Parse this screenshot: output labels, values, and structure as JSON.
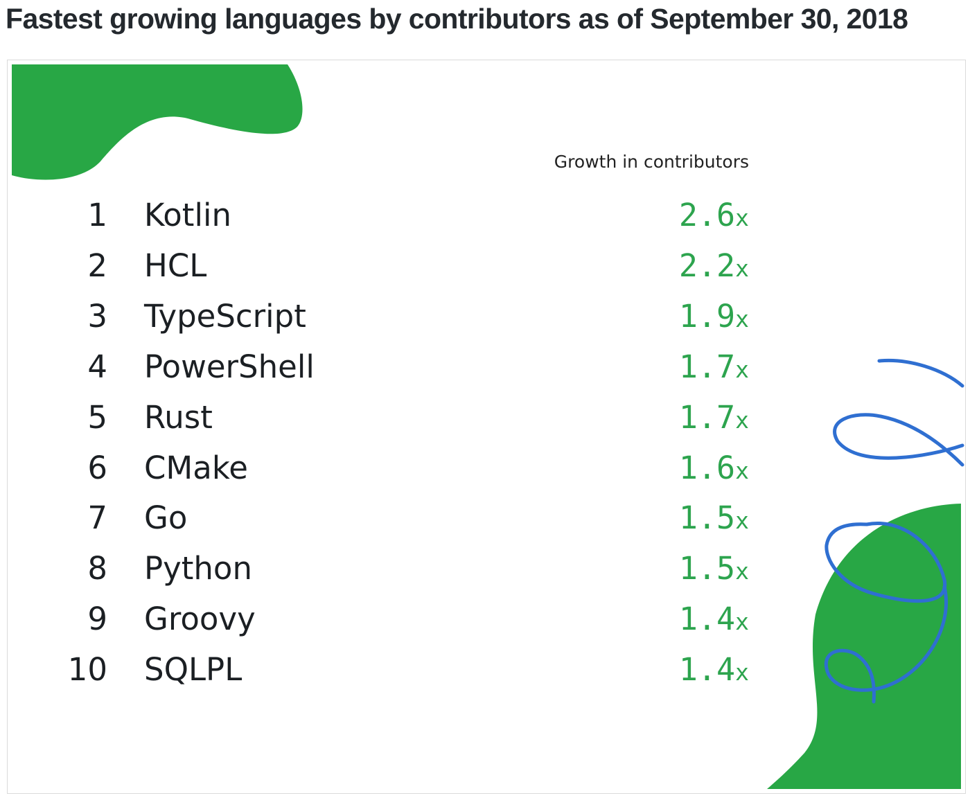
{
  "title": "Fastest growing languages by contributors as of September 30, 2018",
  "colors": {
    "green": "#2da44e",
    "blue": "#2f6fd1",
    "text": "#1b1f23"
  },
  "chart_data": {
    "type": "table",
    "value_header": "Growth in contributors",
    "unit_suffix": "x",
    "rows": [
      {
        "rank": "1",
        "language": "Kotlin",
        "growth": "2.6"
      },
      {
        "rank": "2",
        "language": "HCL",
        "growth": "2.2"
      },
      {
        "rank": "3",
        "language": "TypeScript",
        "growth": "1.9"
      },
      {
        "rank": "4",
        "language": "PowerShell",
        "growth": "1.7"
      },
      {
        "rank": "5",
        "language": "Rust",
        "growth": "1.7"
      },
      {
        "rank": "6",
        "language": "CMake",
        "growth": "1.6"
      },
      {
        "rank": "7",
        "language": "Go",
        "growth": "1.5"
      },
      {
        "rank": "8",
        "language": "Python",
        "growth": "1.5"
      },
      {
        "rank": "9",
        "language": "Groovy",
        "growth": "1.4"
      },
      {
        "rank": "10",
        "language": "SQLPL",
        "growth": "1.4"
      }
    ]
  }
}
